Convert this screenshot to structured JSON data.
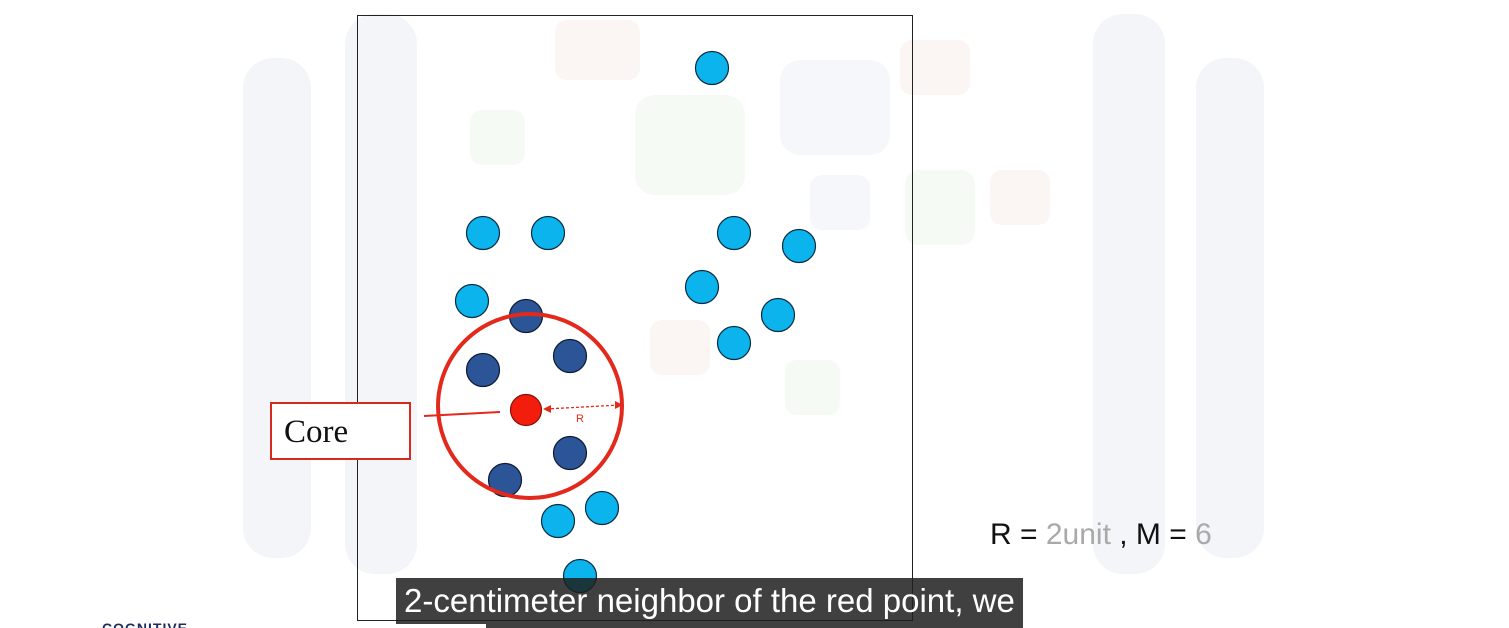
{
  "diagram": {
    "core_label": "Core",
    "radius_label": "R",
    "parameters": {
      "r_prefix": "R = ",
      "r_value": "2unit",
      "separator": " , M = ",
      "m_value": "6"
    },
    "colors": {
      "border_point": "#0bb4ec",
      "neighbor_point": "#2c5597",
      "core_point": "#f21d0d",
      "circle": "#e3281c",
      "frame": "#222222"
    }
  },
  "caption": {
    "text": "2-centimeter neighbor of the red point, we"
  },
  "logo": {
    "text": "COGNITIVE"
  }
}
